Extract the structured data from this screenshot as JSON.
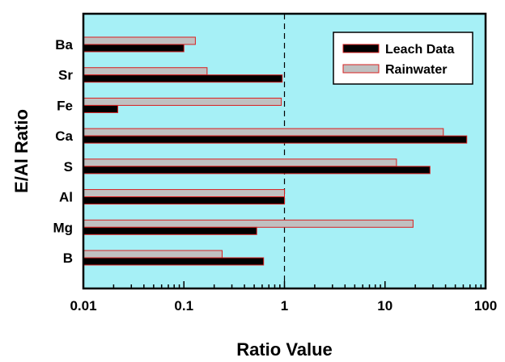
{
  "chart_data": {
    "type": "bar",
    "orientation": "horizontal",
    "ylabel": "E/Al Ratio",
    "xlabel": "Ratio Value",
    "xscale": "log",
    "xlim": [
      0.01,
      100
    ],
    "xticks": [
      "0.01",
      "0.1",
      "1",
      "10",
      "100"
    ],
    "categories": [
      "Ba",
      "Sr",
      "Fe",
      "Ca",
      "S",
      "Al",
      "Mg",
      "B"
    ],
    "series": [
      {
        "name": "Leach Data",
        "values": [
          0.1,
          0.95,
          0.022,
          65,
          28,
          1.0,
          0.53,
          0.62
        ]
      },
      {
        "name": "Rainwater",
        "values": [
          0.13,
          0.17,
          0.93,
          38,
          13,
          1.0,
          19,
          0.24
        ]
      }
    ],
    "reference_line": {
      "x": 1,
      "style": "dashed"
    },
    "legend_position": "top-right",
    "colors": {
      "plot_background": "#a6f0f6",
      "leach_fill": "#000000",
      "rain_fill": "#c0c0c0",
      "bar_stroke": "#d82020"
    }
  }
}
